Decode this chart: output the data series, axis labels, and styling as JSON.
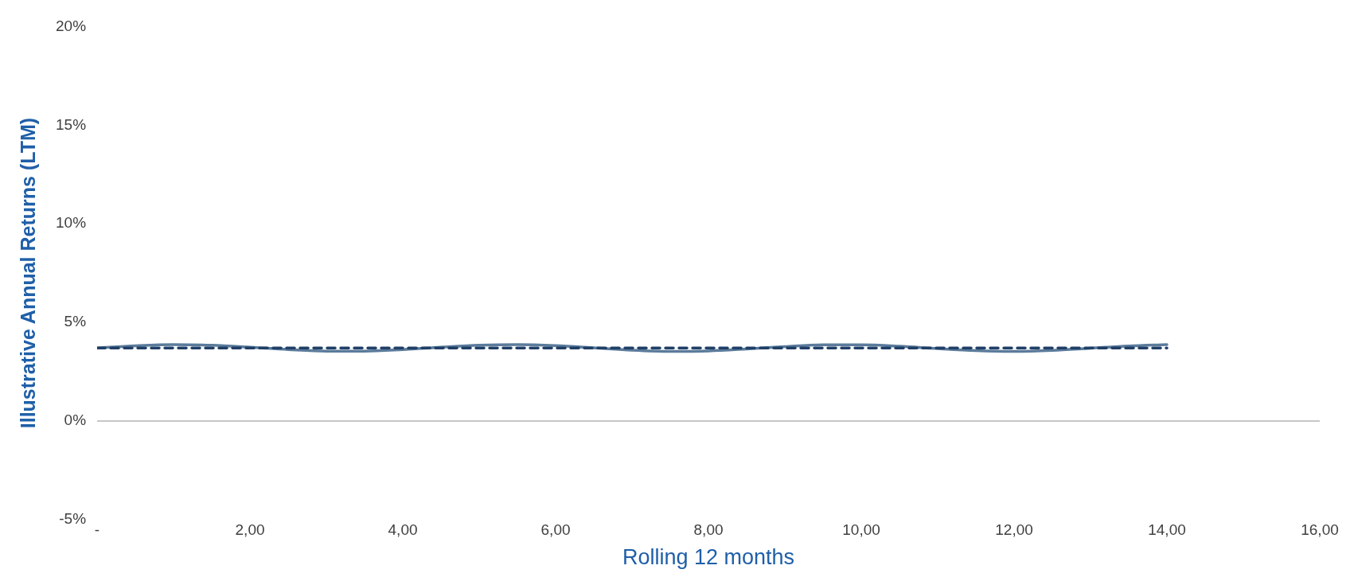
{
  "chart_data": {
    "type": "line",
    "xlabel": "Rolling 12 months",
    "ylabel": "Illustrative Annual Returns (LTM)",
    "xlim": [
      0,
      16
    ],
    "xticks": [
      {
        "value": 0,
        "label": "-"
      },
      {
        "value": 2,
        "label": "2,00"
      },
      {
        "value": 4,
        "label": "4,00"
      },
      {
        "value": 6,
        "label": "6,00"
      },
      {
        "value": 8,
        "label": "8,00"
      },
      {
        "value": 10,
        "label": "10,00"
      },
      {
        "value": 12,
        "label": "12,00"
      },
      {
        "value": 14,
        "label": "14,00"
      },
      {
        "value": 16,
        "label": "16,00"
      }
    ],
    "ylim": [
      -5,
      20
    ],
    "yticks": [
      {
        "value": -5,
        "label": "-5%"
      },
      {
        "value": 0,
        "label": "0%"
      },
      {
        "value": 5,
        "label": "5%"
      },
      {
        "value": 10,
        "label": "10%"
      },
      {
        "value": 15,
        "label": "15%"
      },
      {
        "value": 20,
        "label": "20%"
      }
    ],
    "grid": false,
    "legend": false,
    "marker": "none",
    "ref_lines": [
      {
        "axis": "y",
        "value": 0,
        "color": "#b3b3b3"
      }
    ],
    "series": [
      {
        "color": "#1f3f66",
        "line_style": "dashed",
        "x": [
          0,
          14
        ],
        "values": [
          3.7,
          3.7
        ]
      },
      {
        "color": "#5b7b9b",
        "line_style": "solid",
        "x": [
          0,
          0.5,
          1,
          1.5,
          2,
          2.5,
          3,
          3.5,
          4,
          4.5,
          5,
          5.5,
          6,
          6.5,
          7,
          7.5,
          8,
          8.5,
          9,
          9.5,
          10,
          10.5,
          11,
          11.5,
          12,
          12.5,
          13,
          13.5,
          14
        ],
        "values": [
          3.7,
          3.81,
          3.87,
          3.84,
          3.74,
          3.62,
          3.54,
          3.54,
          3.62,
          3.74,
          3.84,
          3.87,
          3.82,
          3.71,
          3.59,
          3.53,
          3.55,
          3.65,
          3.77,
          3.86,
          3.86,
          3.79,
          3.67,
          3.57,
          3.53,
          3.58,
          3.69,
          3.8,
          3.87
        ]
      }
    ]
  }
}
